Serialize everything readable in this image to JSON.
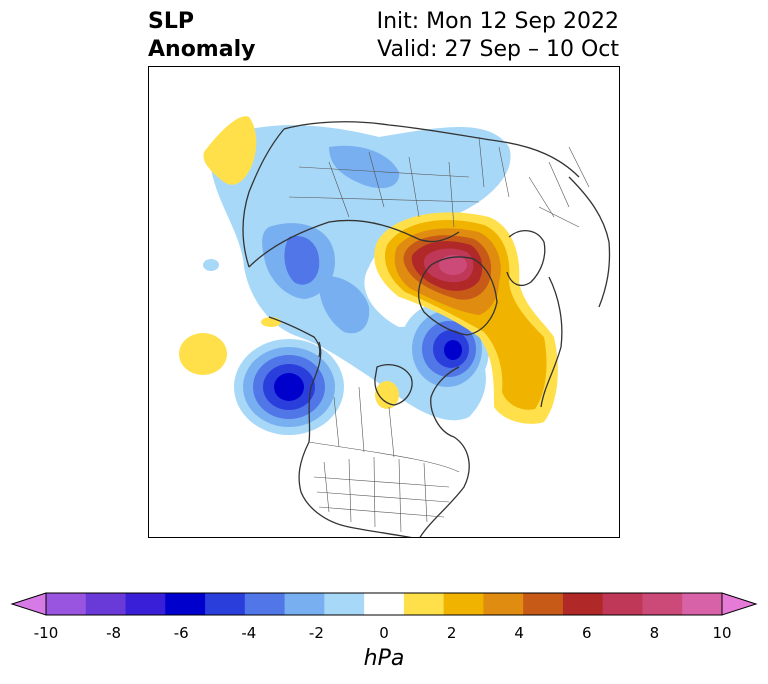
{
  "title": {
    "left_line1": "SLP",
    "left_line2": "Anomaly",
    "right_line1": "Init: Mon 12 Sep 2022",
    "right_line2": "Valid: 27 Sep – 10 Oct"
  },
  "colorbar": {
    "unit": "hPa",
    "ticks": [
      "-10",
      "-8",
      "-6",
      "-4",
      "-2",
      "0",
      "2",
      "4",
      "6",
      "8",
      "10"
    ],
    "colors": [
      "#d67ae6",
      "#9a55e0",
      "#6a3ad8",
      "#3a1fd8",
      "#0000cc",
      "#2a3edc",
      "#5076e8",
      "#78aff0",
      "#a8d8f8",
      "#ffffff",
      "#ffe04a",
      "#f0b400",
      "#e08c10",
      "#c85a18",
      "#b02828",
      "#c03858",
      "#cc4a78",
      "#d862a8",
      "#e57bd7"
    ],
    "extend": "both"
  },
  "map": {
    "projection": "north-polar-stereographic",
    "anomaly_features": [
      {
        "name": "high-greenland-arctic",
        "sign": "positive",
        "peak_hpa": 8
      },
      {
        "name": "high-north-atlantic-tail",
        "sign": "positive",
        "peak_hpa": 3
      },
      {
        "name": "high-bering-sea",
        "sign": "positive",
        "peak_hpa": 1
      },
      {
        "name": "high-gulf-of-alaska-small",
        "sign": "positive",
        "peak_hpa": 1
      },
      {
        "name": "high-north-pacific",
        "sign": "positive",
        "peak_hpa": 1
      },
      {
        "name": "low-northeast-pacific",
        "sign": "negative",
        "peak_hpa": -7
      },
      {
        "name": "low-scandinavia-barents",
        "sign": "negative",
        "peak_hpa": -7
      },
      {
        "name": "low-east-siberia",
        "sign": "negative",
        "peak_hpa": -4
      },
      {
        "name": "low-central-asia",
        "sign": "negative",
        "peak_hpa": -2
      }
    ]
  }
}
